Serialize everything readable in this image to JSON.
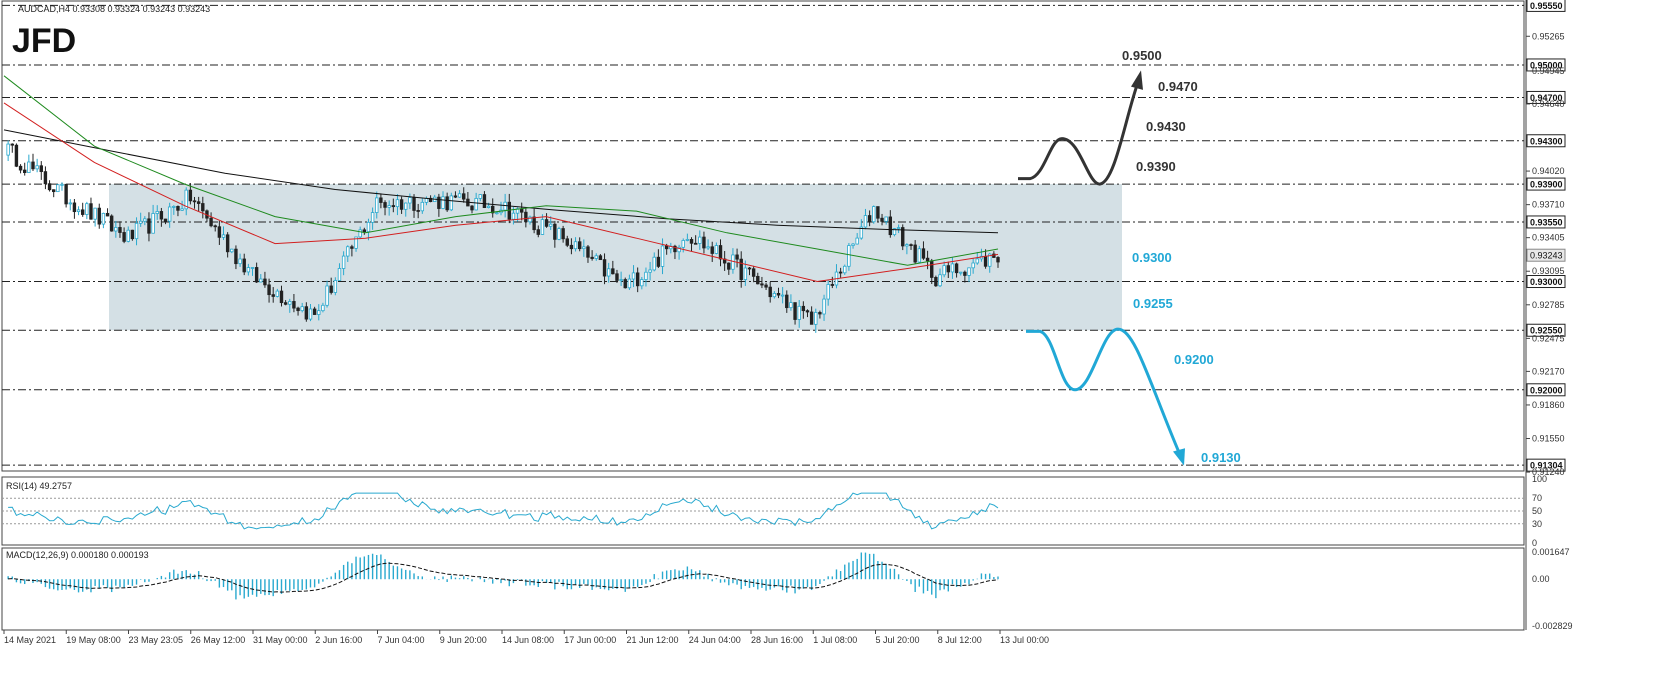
{
  "header": {
    "symbol_line": "AUDCAD,H4  0.93308 0.93324 0.93243 0.93243",
    "logo": "JFD"
  },
  "colors": {
    "candle": "#222222",
    "candle_bull": "#29a9cf",
    "ma_black": "#111111",
    "ma_green": "#1e8a1e",
    "ma_red": "#d21f1f",
    "box_fill": "#d4e0e5",
    "arrow_up": "#333333",
    "arrow_down": "#21a8d6",
    "rsi_line": "#29a9cf",
    "macd_hist": "#29a9cf"
  },
  "price_levels": [
    {
      "label": "0.95550",
      "value": 0.9555,
      "boxed": true
    },
    {
      "label": "0.95000",
      "value": 0.95,
      "boxed": true
    },
    {
      "label": "0.94700",
      "value": 0.947,
      "boxed": true
    },
    {
      "label": "0.94300",
      "value": 0.943,
      "boxed": true
    },
    {
      "label": "0.93900",
      "value": 0.939,
      "boxed": true
    },
    {
      "label": "0.93550",
      "value": 0.9355,
      "boxed": true
    },
    {
      "label": "0.93000",
      "value": 0.93,
      "boxed": true
    },
    {
      "label": "0.92550",
      "value": 0.9255,
      "boxed": true
    },
    {
      "label": "0.92000",
      "value": 0.92,
      "boxed": true
    },
    {
      "label": "0.91304",
      "value": 0.91304,
      "boxed": true
    }
  ],
  "current_price": {
    "label": "0.93243",
    "value": 0.93243
  },
  "price_ticks": [
    {
      "label": "0.95265",
      "value": 0.95265
    },
    {
      "label": "0.94945",
      "value": 0.94945
    },
    {
      "label": "0.94640",
      "value": 0.9464
    },
    {
      "label": "0.94020",
      "value": 0.9402
    },
    {
      "label": "0.93710",
      "value": 0.9371
    },
    {
      "label": "0.93405",
      "value": 0.93405
    },
    {
      "label": "0.93095",
      "value": 0.93095
    },
    {
      "label": "0.92785",
      "value": 0.92785
    },
    {
      "label": "0.92475",
      "value": 0.92475
    },
    {
      "label": "0.92170",
      "value": 0.9217
    },
    {
      "label": "0.91860",
      "value": 0.9186
    },
    {
      "label": "0.91550",
      "value": 0.9155
    },
    {
      "label": "0.91240",
      "value": 0.9124
    }
  ],
  "annotations": [
    {
      "text": "0.9500",
      "color": "dark"
    },
    {
      "text": "0.9470",
      "color": "dark"
    },
    {
      "text": "0.9430",
      "color": "dark"
    },
    {
      "text": "0.9390",
      "color": "dark"
    },
    {
      "text": "0.9300",
      "color": "blue"
    },
    {
      "text": "0.9255",
      "color": "blue"
    },
    {
      "text": "0.9200",
      "color": "blue"
    },
    {
      "text": "0.9130",
      "color": "blue"
    }
  ],
  "rsi": {
    "label": "RSI(14) 49.2757",
    "ticks": [
      "100",
      "70",
      "50",
      "30",
      "0"
    ]
  },
  "macd": {
    "label": "MACD(12,26,9) 0.000180 0.000193",
    "ticks": [
      "0.001647",
      "0.00",
      "-0.002829"
    ]
  },
  "x_ticks": [
    "14 May 2021",
    "19 May 08:00",
    "23 May 23:05",
    "26 May 12:00",
    "31 May 00:00",
    "2 Jun 16:00",
    "7 Jun 04:00",
    "9 Jun 20:00",
    "14 Jun 08:00",
    "17 Jun 00:00",
    "21 Jun 12:00",
    "24 Jun 04:00",
    "28 Jun 16:00",
    "1 Jul 08:00",
    "5 Jul 20:00",
    "8 Jul 12:00",
    "13 Jul 00:00"
  ],
  "chart_data": {
    "type": "candlestick",
    "title": "AUDCAD,H4  0.93308 0.93324 0.93243 0.93243",
    "ylim": [
      0.9124,
      0.9562
    ],
    "range_box": {
      "top": 0.939,
      "bottom": 0.9255
    },
    "close_path": [
      {
        "x": "14 May 2021",
        "y": 0.9424
      },
      {
        "x": "19 May 08:00",
        "y": 0.9378
      },
      {
        "x": "23 May 23:05",
        "y": 0.934
      },
      {
        "x": "26 May 12:00",
        "y": 0.9378
      },
      {
        "x": "31 May 00:00",
        "y": 0.9305
      },
      {
        "x": "2 Jun 16:00",
        "y": 0.9268
      },
      {
        "x": "7 Jun 04:00",
        "y": 0.9372
      },
      {
        "x": "9 Jun 20:00",
        "y": 0.9375
      },
      {
        "x": "14 Jun 08:00",
        "y": 0.937
      },
      {
        "x": "17 Jun 00:00",
        "y": 0.934
      },
      {
        "x": "21 Jun 12:00",
        "y": 0.9295
      },
      {
        "x": "24 Jun 04:00",
        "y": 0.9345
      },
      {
        "x": "28 Jun 16:00",
        "y": 0.9305
      },
      {
        "x": "1 Jul 08:00",
        "y": 0.9262
      },
      {
        "x": "5 Jul 20:00",
        "y": 0.9368
      },
      {
        "x": "8 Jul 12:00",
        "y": 0.9305
      },
      {
        "x": "13 Jul 00:00",
        "y": 0.9324
      }
    ],
    "series": [
      {
        "values": [
          0.944,
          0.942,
          0.94,
          0.9385,
          0.9375,
          0.9366,
          0.9358,
          0.9352,
          0.9348,
          0.9345
        ]
      },
      {
        "values": [
          0.949,
          0.9425,
          0.939,
          0.936,
          0.9345,
          0.936,
          0.937,
          0.9365,
          0.9345,
          0.933,
          0.9315,
          0.933
        ]
      },
      {
        "values": [
          0.9465,
          0.941,
          0.937,
          0.9335,
          0.934,
          0.9352,
          0.936,
          0.934,
          0.932,
          0.93,
          0.9312,
          0.9325
        ]
      }
    ]
  }
}
